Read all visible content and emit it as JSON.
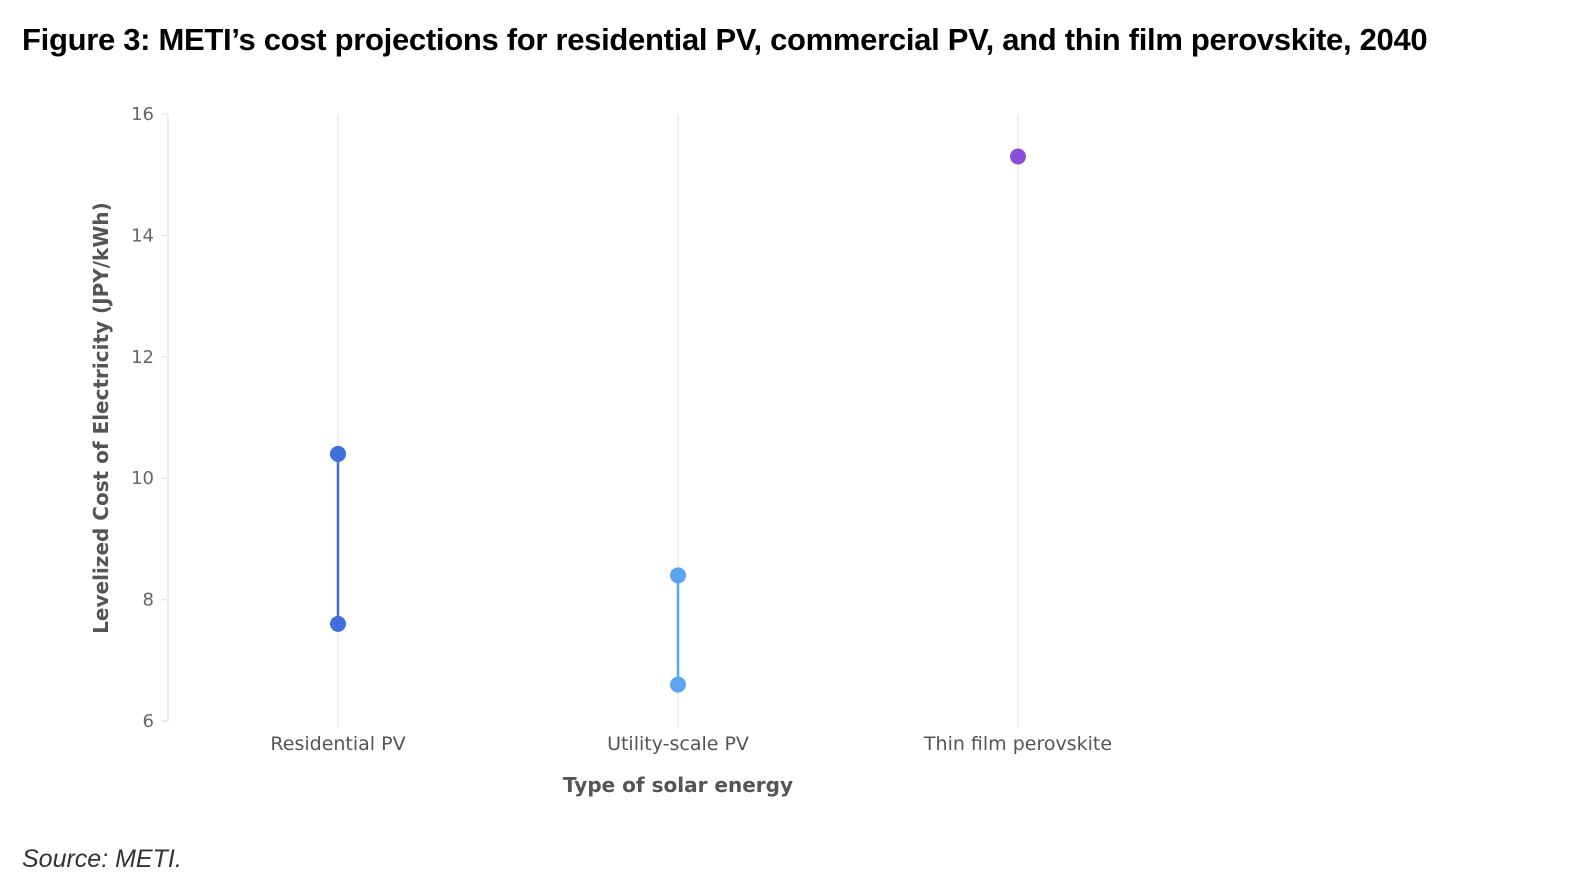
{
  "title": "Figure 3: METI’s cost projections for residential PV, commercial PV, and thin film perovskite, 2040",
  "source": "Source: METI.",
  "chart_data": {
    "type": "dumbbell",
    "title": "Figure 3: METI’s cost projections for residential PV, commercial PV, and thin film perovskite, 2040",
    "xlabel": "Type of solar energy",
    "ylabel": "Levelized Cost of Electricity (JPY/kWh)",
    "ylim": [
      6,
      16
    ],
    "yticks": [
      6,
      8,
      10,
      12,
      14,
      16
    ],
    "grid": "vertical category lines",
    "categories": [
      "Residential PV",
      "Utility-scale PV",
      "Thin film perovskite"
    ],
    "series": [
      {
        "name": "Residential PV",
        "low": 7.6,
        "high": 10.4,
        "color": "#3f6fdc"
      },
      {
        "name": "Utility-scale PV",
        "low": 6.6,
        "high": 8.4,
        "color": "#5aa4f0"
      },
      {
        "name": "Thin film perovskite",
        "low": 15.3,
        "high": 15.3,
        "color": "#8a4fd8"
      }
    ]
  }
}
